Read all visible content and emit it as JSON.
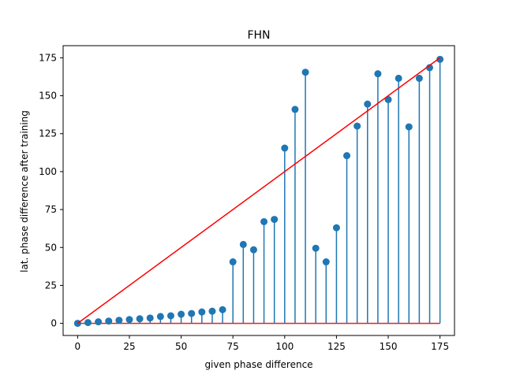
{
  "chart_data": {
    "type": "stem",
    "title": "FHN",
    "xlabel": "given phase difference",
    "ylabel": "lat. phase difference after training",
    "xlim": [
      -7,
      182
    ],
    "ylim": [
      -8,
      183
    ],
    "xticks": [
      0,
      25,
      50,
      75,
      100,
      125,
      150,
      175
    ],
    "yticks": [
      0,
      25,
      50,
      75,
      100,
      125,
      150,
      175
    ],
    "grid": false,
    "stem_color": "#1f77b4",
    "baseline_color": "#d62728",
    "reference_line_color": "#ff0000",
    "reference_line": {
      "x": [
        0,
        175
      ],
      "y": [
        0,
        175
      ]
    },
    "baseline": {
      "x": [
        0,
        175
      ],
      "y": 0
    },
    "series": [
      {
        "x": [
          0,
          5,
          10,
          15,
          20,
          25,
          30,
          35,
          40,
          45,
          50,
          55,
          60,
          65,
          70,
          75,
          80,
          85,
          90,
          95,
          100,
          105,
          110,
          115,
          120,
          125,
          130,
          135,
          140,
          145,
          150,
          155,
          160,
          165,
          170,
          175
        ],
        "y": [
          0,
          0.5,
          1,
          1.5,
          2,
          2.5,
          3,
          3.5,
          4.5,
          5,
          6,
          6.5,
          7.5,
          8,
          9,
          40.5,
          52,
          48.5,
          67,
          68.5,
          115.5,
          141,
          165.5,
          49.5,
          40.5,
          63,
          110.5,
          130,
          144.5,
          164.5,
          147.5,
          161.5,
          129.5,
          161.5,
          168.5,
          174
        ]
      }
    ]
  }
}
